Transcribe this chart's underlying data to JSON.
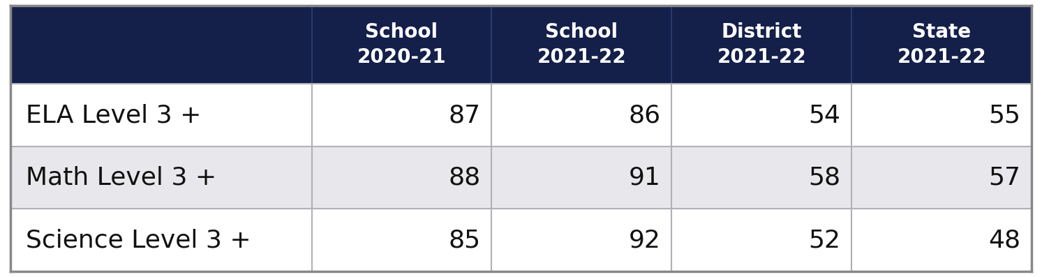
{
  "col_headers": [
    [
      "School",
      "2020-21"
    ],
    [
      "School",
      "2021-22"
    ],
    [
      "District",
      "2021-22"
    ],
    [
      "State",
      "2021-22"
    ]
  ],
  "rows": [
    {
      "label": "ELA Level 3 +",
      "values": [
        87,
        86,
        54,
        55
      ]
    },
    {
      "label": "Math Level 3 +",
      "values": [
        88,
        91,
        58,
        57
      ]
    },
    {
      "label": "Science Level 3 +",
      "values": [
        85,
        92,
        52,
        48
      ]
    }
  ],
  "header_bg": "#14204a",
  "header_text_color": "#ffffff",
  "row_bg_odd": "#ffffff",
  "row_bg_even": "#e8e8ec",
  "data_text_color": "#111111",
  "label_text_color": "#111111",
  "border_color": "#b0b0b8",
  "header_fontsize": 20,
  "data_fontsize": 26,
  "label_fontsize": 26,
  "fig_width": 14.93,
  "fig_height": 3.97
}
